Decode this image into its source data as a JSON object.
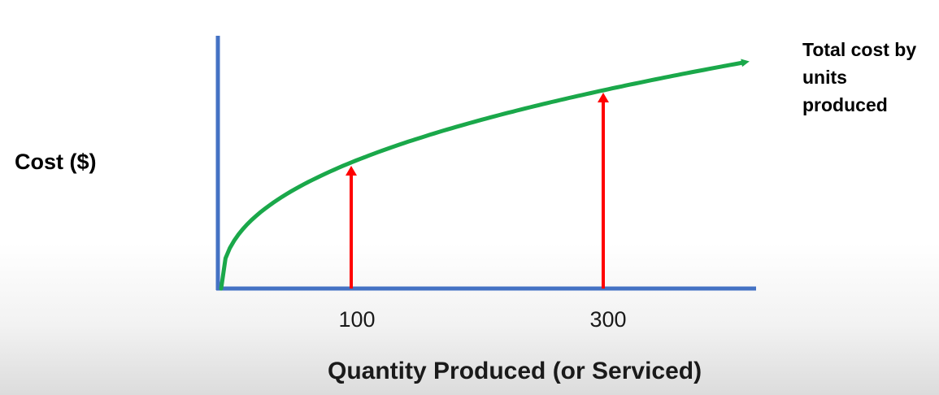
{
  "chart_data": {
    "type": "line",
    "title": "",
    "ylabel": "Cost ($)",
    "xlabel": "Quantity Produced (or Serviced)",
    "x_ticks": [
      {
        "value": 100,
        "label": "100"
      },
      {
        "value": 300,
        "label": "300"
      }
    ],
    "xlim": [
      0,
      425
    ],
    "curve": {
      "shape": "concave-increasing",
      "annotation": "Total cost by units produced"
    },
    "markers": [
      {
        "x": 100
      },
      {
        "x": 300
      }
    ],
    "grid": false,
    "y_ticks": false
  },
  "colors": {
    "axis": "#4472c4",
    "curve": "#1aa84a",
    "marker": "#ff0000"
  }
}
